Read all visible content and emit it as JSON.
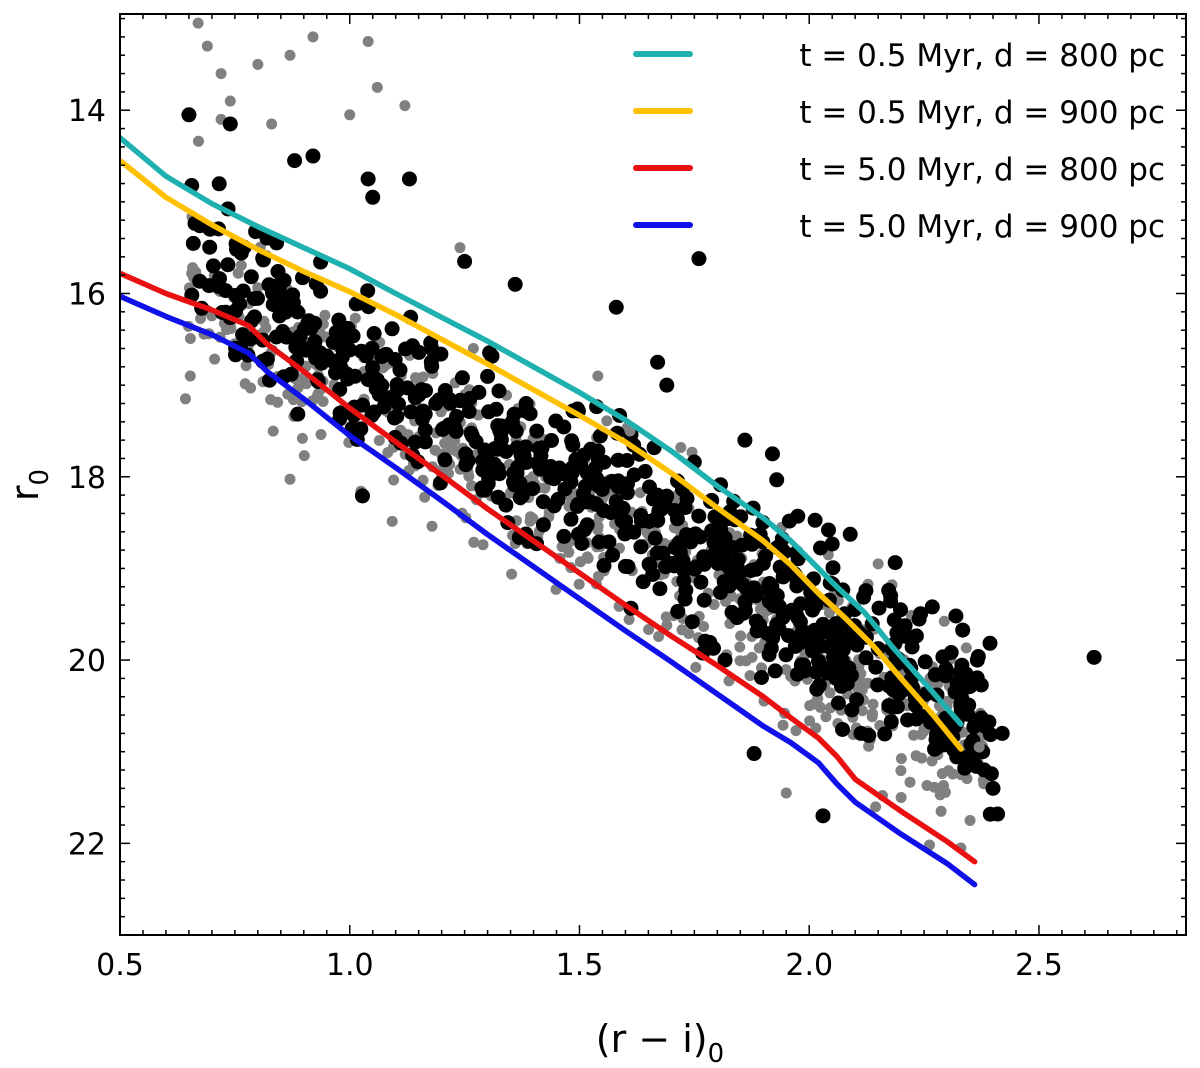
{
  "chart_data": {
    "type": "scatter",
    "xlabel": "(r − i)",
    "xlabel_sub": "0",
    "ylabel": "r",
    "ylabel_sub": "0",
    "xlim": [
      0.5,
      2.82
    ],
    "ylim": [
      23.0,
      12.95
    ],
    "y_inverted": true,
    "xticks": [
      0.5,
      1.0,
      1.5,
      2.0,
      2.5
    ],
    "xtick_labels": [
      "0.5",
      "1.0",
      "1.5",
      "2.0",
      "2.5"
    ],
    "yticks": [
      14,
      16,
      18,
      20,
      22
    ],
    "ytick_labels": [
      "14",
      "16",
      "18",
      "20",
      "22"
    ],
    "grid": false,
    "legend_position": "top-right",
    "colors": {
      "gray_points": "#808080",
      "black_points": "#000000"
    },
    "series": [
      {
        "name": "t = 0.5 Myr, d = 800 pc",
        "color": "#1fb0b0",
        "x": [
          0.5,
          0.6,
          0.7,
          0.8,
          0.9,
          1.0,
          1.1,
          1.2,
          1.3,
          1.4,
          1.5,
          1.6,
          1.7,
          1.8,
          1.9,
          1.96,
          2.02,
          2.06,
          2.12,
          2.18,
          2.26,
          2.33
        ],
        "y": [
          14.3,
          14.72,
          15.02,
          15.27,
          15.5,
          15.73,
          16.0,
          16.26,
          16.52,
          16.8,
          17.08,
          17.38,
          17.72,
          18.1,
          18.45,
          18.7,
          19.0,
          19.2,
          19.48,
          19.85,
          20.3,
          20.7
        ]
      },
      {
        "name": "t = 0.5 Myr, d = 900 pc",
        "color": "#ffc000",
        "x": [
          0.5,
          0.6,
          0.7,
          0.8,
          0.9,
          1.0,
          1.1,
          1.2,
          1.3,
          1.4,
          1.5,
          1.6,
          1.7,
          1.8,
          1.9,
          1.96,
          2.02,
          2.08,
          2.14,
          2.2,
          2.27,
          2.33
        ],
        "y": [
          14.55,
          14.95,
          15.25,
          15.52,
          15.76,
          15.98,
          16.23,
          16.5,
          16.77,
          17.05,
          17.33,
          17.62,
          17.96,
          18.34,
          18.7,
          18.96,
          19.27,
          19.55,
          19.85,
          20.2,
          20.6,
          20.97
        ]
      },
      {
        "name": "t = 5.0 Myr, d = 800 pc",
        "color": "#e81010",
        "x": [
          0.5,
          0.6,
          0.7,
          0.78,
          0.8,
          0.82,
          0.9,
          1.0,
          1.1,
          1.2,
          1.3,
          1.4,
          1.5,
          1.6,
          1.7,
          1.8,
          1.9,
          1.96,
          2.02,
          2.06,
          2.1,
          2.2,
          2.3,
          2.36
        ],
        "y": [
          15.78,
          16.0,
          16.18,
          16.35,
          16.45,
          16.55,
          16.85,
          17.25,
          17.62,
          17.98,
          18.35,
          18.7,
          19.05,
          19.4,
          19.74,
          20.06,
          20.4,
          20.63,
          20.85,
          21.05,
          21.3,
          21.65,
          21.98,
          22.2
        ]
      },
      {
        "name": "t = 5.0 Myr, d = 900 pc",
        "color": "#1010e8",
        "x": [
          0.5,
          0.6,
          0.7,
          0.78,
          0.8,
          0.82,
          0.9,
          1.0,
          1.1,
          1.2,
          1.3,
          1.4,
          1.5,
          1.6,
          1.7,
          1.8,
          1.9,
          1.96,
          2.02,
          2.06,
          2.1,
          2.2,
          2.3,
          2.36
        ],
        "y": [
          16.03,
          16.25,
          16.45,
          16.65,
          16.75,
          16.85,
          17.15,
          17.55,
          17.9,
          18.26,
          18.63,
          18.98,
          19.33,
          19.68,
          20.02,
          20.37,
          20.72,
          20.9,
          21.12,
          21.35,
          21.55,
          21.9,
          22.22,
          22.45
        ]
      }
    ],
    "scatter_clouds": [
      {
        "label": "gray",
        "color": "#808080",
        "radius": 5.5,
        "count": 620,
        "x_range": [
          0.64,
          2.38
        ],
        "ridge": {
          "x": [
            0.65,
            1.0,
            1.5,
            2.0,
            2.35
          ],
          "y": [
            15.9,
            17.0,
            18.35,
            19.85,
            20.95
          ]
        },
        "scatter_sigma": 0.85
      },
      {
        "label": "black",
        "color": "#000000",
        "radius": 7.5,
        "count": 700,
        "x_range": [
          0.65,
          2.4
        ],
        "ridge": {
          "x": [
            0.65,
            1.0,
            1.5,
            2.0,
            2.35
          ],
          "y": [
            15.6,
            16.75,
            18.0,
            19.5,
            20.6
          ]
        },
        "scatter_sigma": 0.8
      }
    ],
    "outlier_points": {
      "gray": [
        [
          0.67,
          13.05
        ],
        [
          0.69,
          13.3
        ],
        [
          0.72,
          13.6
        ],
        [
          0.74,
          13.9
        ],
        [
          0.8,
          13.5
        ],
        [
          0.87,
          13.4
        ],
        [
          0.92,
          13.2
        ],
        [
          1.0,
          14.05
        ],
        [
          1.04,
          13.25
        ],
        [
          1.06,
          13.75
        ],
        [
          0.83,
          14.15
        ],
        [
          0.72,
          14.1
        ],
        [
          1.12,
          13.95
        ],
        [
          1.24,
          15.5
        ],
        [
          1.54,
          16.9
        ],
        [
          1.61,
          17.5
        ],
        [
          2.15,
          18.95
        ],
        [
          2.3,
          20.5
        ],
        [
          2.37,
          20.95
        ],
        [
          2.38,
          21.35
        ],
        [
          2.35,
          21.75
        ],
        [
          1.95,
          21.45
        ],
        [
          2.2,
          21.5
        ],
        [
          2.33,
          22.05
        ]
      ],
      "black": [
        [
          0.65,
          14.05
        ],
        [
          0.74,
          14.15
        ],
        [
          0.88,
          14.55
        ],
        [
          0.92,
          14.5
        ],
        [
          1.04,
          14.75
        ],
        [
          1.05,
          14.95
        ],
        [
          1.13,
          14.75
        ],
        [
          1.25,
          15.65
        ],
        [
          1.36,
          15.9
        ],
        [
          1.58,
          16.15
        ],
        [
          1.67,
          16.75
        ],
        [
          1.69,
          17.0
        ],
        [
          1.76,
          15.62
        ],
        [
          1.86,
          17.6
        ],
        [
          1.92,
          17.75
        ],
        [
          2.62,
          19.97
        ],
        [
          2.42,
          20.8
        ],
        [
          2.4,
          21.4
        ],
        [
          2.41,
          21.68
        ],
        [
          2.03,
          21.7
        ],
        [
          1.88,
          21.02
        ]
      ]
    }
  }
}
